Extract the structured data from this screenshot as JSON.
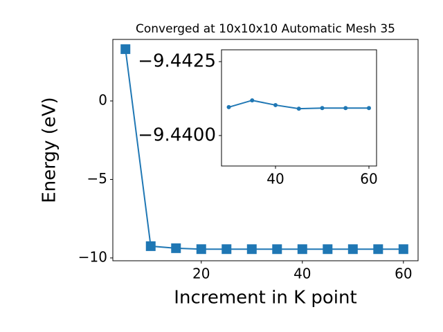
{
  "chart_data": [
    {
      "type": "line",
      "title": "Converged at 10x10x10 Automatic Mesh 35",
      "x_label": "Increment in K point",
      "y_label": "Energy (eV)",
      "x": [
        5,
        10,
        15,
        20,
        25,
        30,
        35,
        40,
        45,
        50,
        55,
        60
      ],
      "series": [
        {
          "name": "Energy",
          "color": "#1f77b4",
          "marker": "square",
          "values": [
            3.3,
            -9.25,
            -9.38,
            -9.44,
            -9.44,
            -9.44096,
            -9.44119,
            -9.44103,
            -9.44091,
            -9.44093,
            -9.44093,
            -9.44093
          ]
        }
      ],
      "xlim": [
        2.5,
        62.9
      ],
      "ylim": [
        -10.18,
        3.92
      ],
      "xticks": [
        20,
        40,
        60
      ],
      "yticks": [
        {
          "value": -10,
          "label": "−10"
        },
        {
          "value": -5,
          "label": "−5"
        },
        0
      ]
    },
    {
      "type": "line",
      "x": [
        30,
        35,
        40,
        45,
        50,
        55,
        60
      ],
      "series": [
        {
          "name": "Energy",
          "color": "#1f77b4",
          "marker": "circle",
          "values": [
            -9.44096,
            -9.44119,
            -9.44103,
            -9.44091,
            -9.44093,
            -9.44093,
            -9.44093
          ]
        }
      ],
      "xlim": [
        28.44,
        61.63
      ],
      "ylim": [
        -9.43897,
        -9.4429
      ],
      "xticks": [
        40,
        60
      ],
      "yticks": [
        {
          "value": -9.4425,
          "label": "−9.4425"
        },
        {
          "value": -9.44,
          "label": "−9.4400"
        }
      ]
    }
  ]
}
